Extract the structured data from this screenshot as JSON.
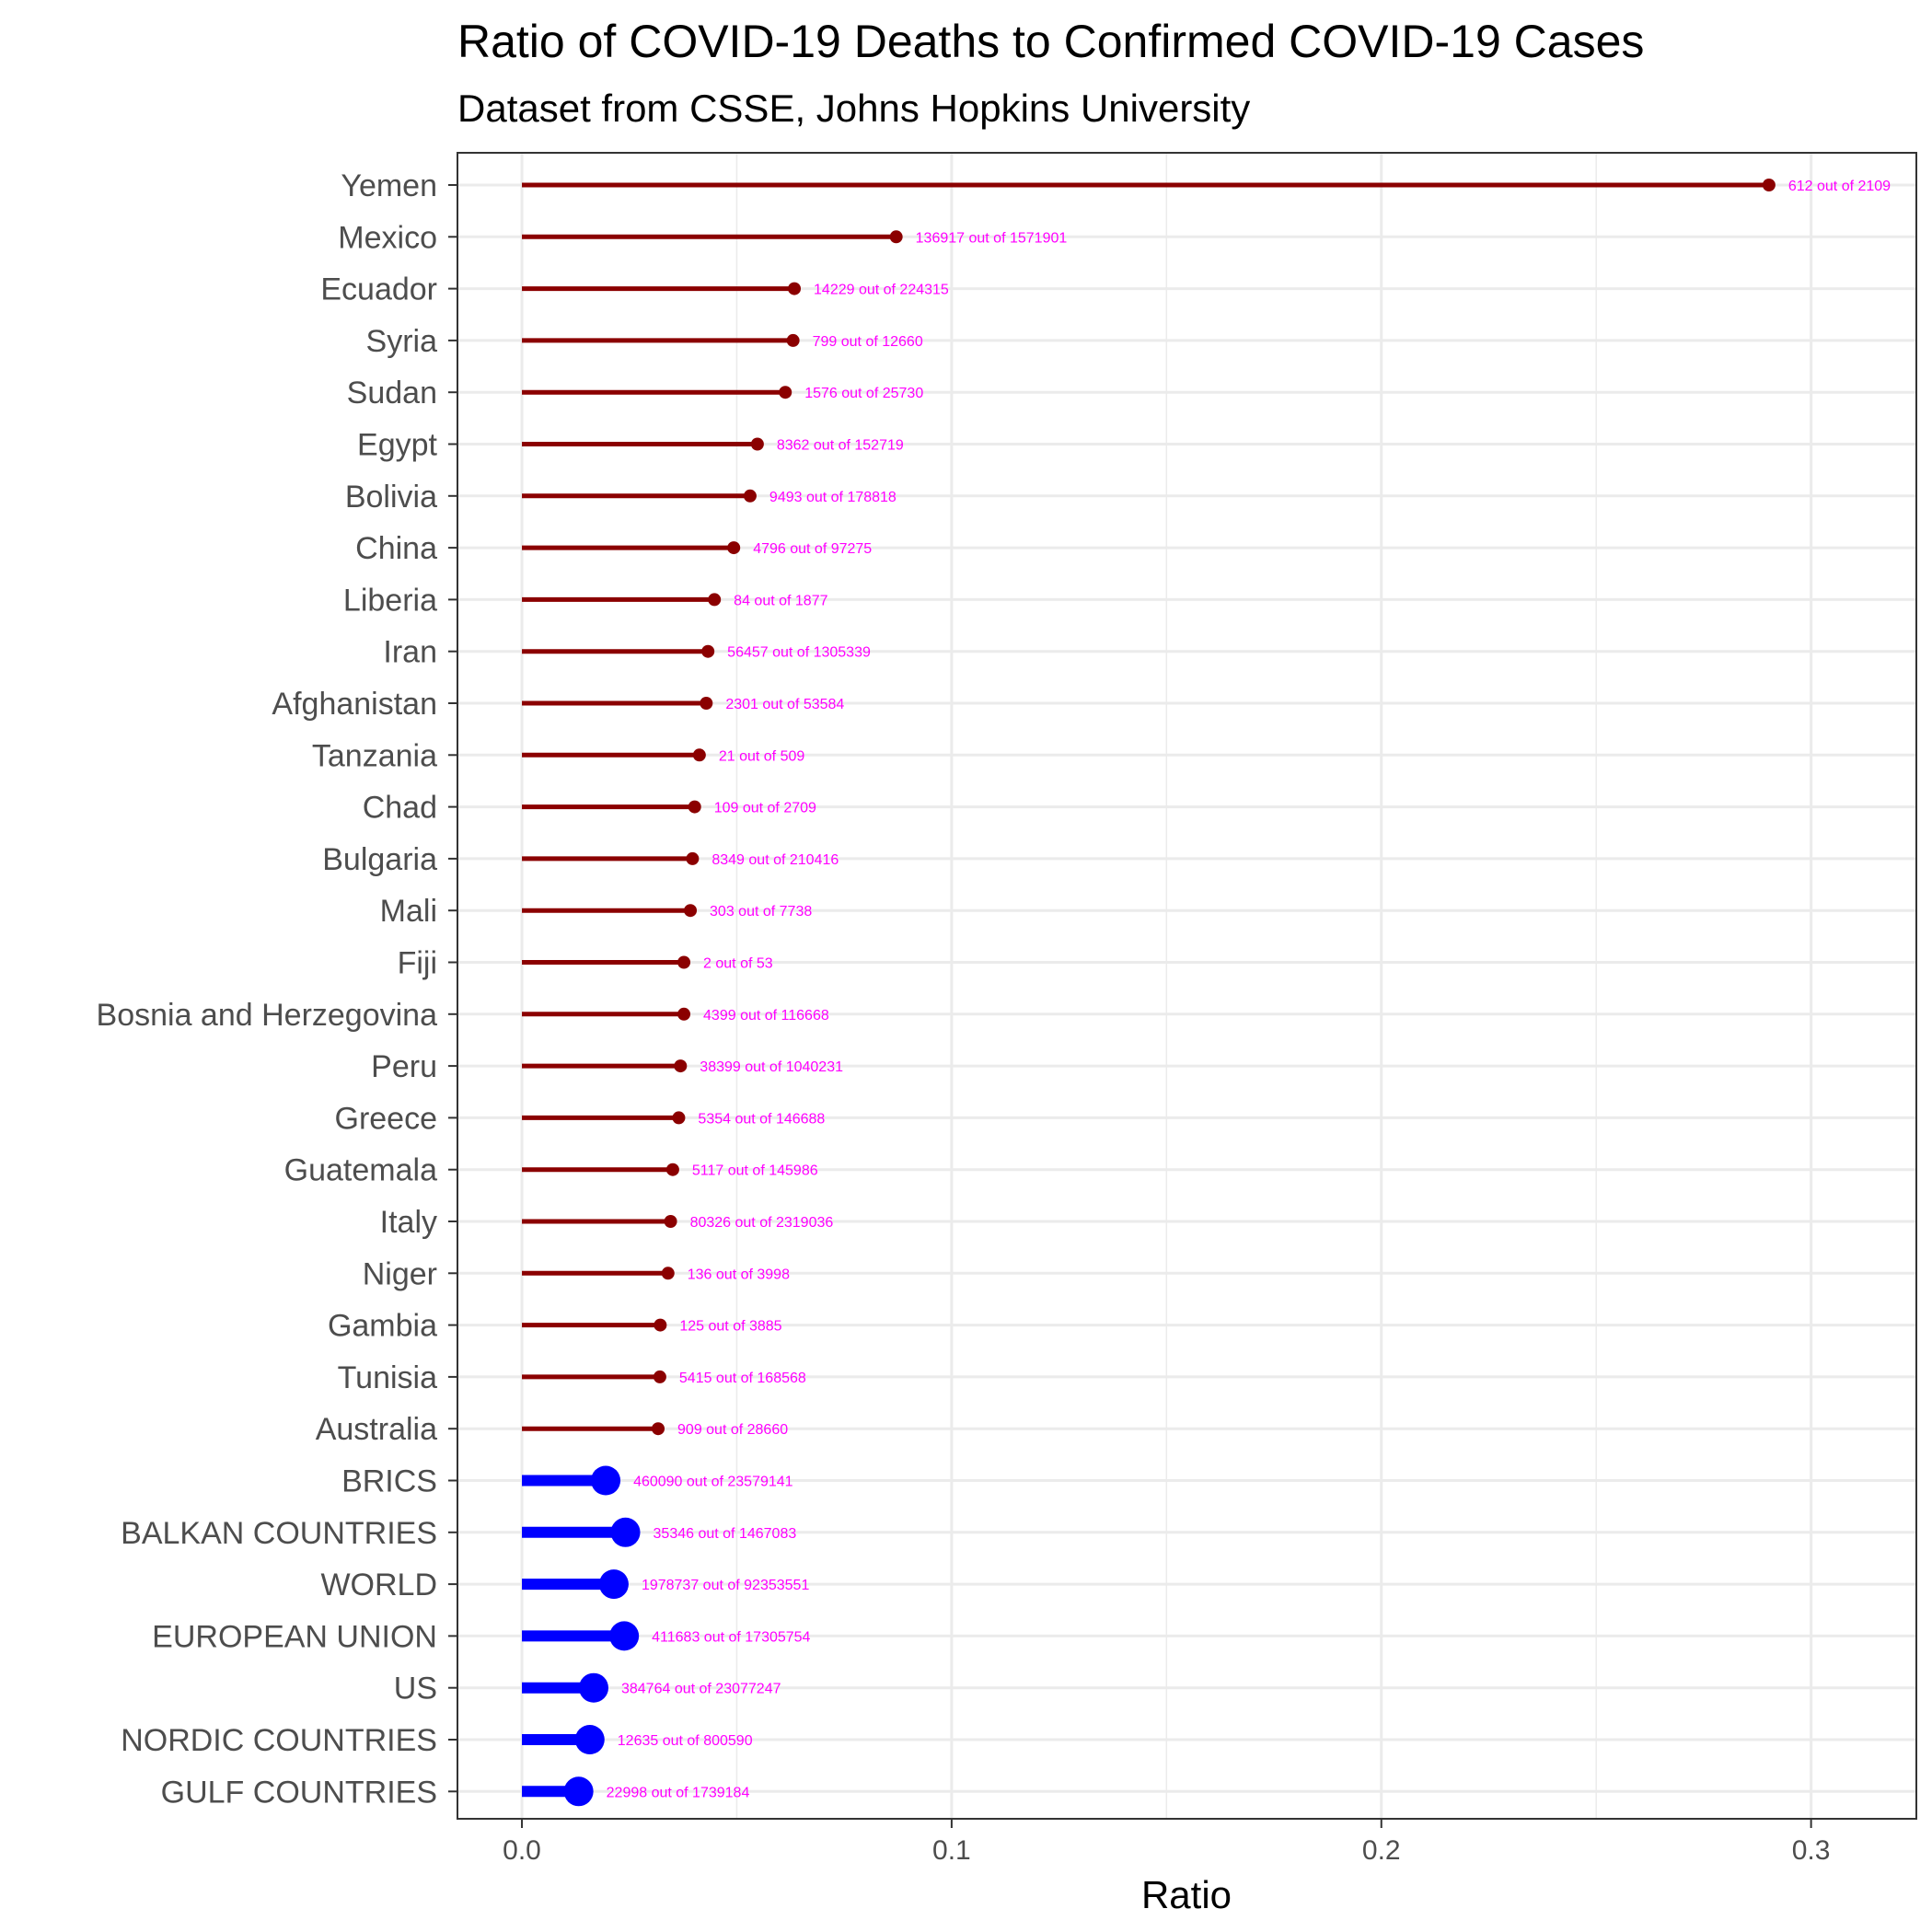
{
  "chart_data": {
    "type": "lollipop",
    "title": "Ratio of COVID-19 Deaths to Confirmed COVID-19 Cases",
    "subtitle": "Dataset from CSSE, Johns Hopkins University",
    "xlabel": "Ratio",
    "ylabel": "",
    "xlim": [
      -0.015,
      0.3245
    ],
    "xticks": [
      0.0,
      0.1,
      0.2,
      0.3
    ],
    "xtick_labels": [
      "0.0",
      "0.1",
      "0.2",
      "0.3"
    ],
    "grid": true,
    "colors": {
      "country": "#8b0000",
      "aggregate": "#0000ff",
      "data_label": "#ff00ff",
      "grid": "#ebebeb",
      "axis": "#333333"
    },
    "points": [
      {
        "name": "Yemen",
        "value": 0.2902,
        "label": "612 out of 2109",
        "group": "country"
      },
      {
        "name": "Mexico",
        "value": 0.0871,
        "label": "136917 out of 1571901",
        "group": "country"
      },
      {
        "name": "Ecuador",
        "value": 0.0634,
        "label": "14229 out of 224315",
        "group": "country"
      },
      {
        "name": "Syria",
        "value": 0.0631,
        "label": "799 out of 12660",
        "group": "country"
      },
      {
        "name": "Sudan",
        "value": 0.0613,
        "label": "1576 out of 25730",
        "group": "country"
      },
      {
        "name": "Egypt",
        "value": 0.0548,
        "label": "8362 out of 152719",
        "group": "country"
      },
      {
        "name": "Bolivia",
        "value": 0.0531,
        "label": "9493 out of 178818",
        "group": "country"
      },
      {
        "name": "China",
        "value": 0.0493,
        "label": "4796 out of 97275",
        "group": "country"
      },
      {
        "name": "Liberia",
        "value": 0.0448,
        "label": "84 out of 1877",
        "group": "country"
      },
      {
        "name": "Iran",
        "value": 0.0433,
        "label": "56457 out of 1305339",
        "group": "country"
      },
      {
        "name": "Afghanistan",
        "value": 0.0429,
        "label": "2301 out of 53584",
        "group": "country"
      },
      {
        "name": "Tanzania",
        "value": 0.0413,
        "label": "21 out of 509",
        "group": "country"
      },
      {
        "name": "Chad",
        "value": 0.0402,
        "label": "109 out of 2709",
        "group": "country"
      },
      {
        "name": "Bulgaria",
        "value": 0.0397,
        "label": "8349 out of 210416",
        "group": "country"
      },
      {
        "name": "Mali",
        "value": 0.0392,
        "label": "303 out of 7738",
        "group": "country"
      },
      {
        "name": "Fiji",
        "value": 0.0377,
        "label": "2 out of 53",
        "group": "country"
      },
      {
        "name": "Bosnia and Herzegovina",
        "value": 0.0377,
        "label": "4399 out of 116668",
        "group": "country"
      },
      {
        "name": "Peru",
        "value": 0.0369,
        "label": "38399 out of 1040231",
        "group": "country"
      },
      {
        "name": "Greece",
        "value": 0.0365,
        "label": "5354 out of 146688",
        "group": "country"
      },
      {
        "name": "Guatemala",
        "value": 0.0351,
        "label": "5117 out of 145986",
        "group": "country"
      },
      {
        "name": "Italy",
        "value": 0.0346,
        "label": "80326 out of 2319036",
        "group": "country"
      },
      {
        "name": "Niger",
        "value": 0.034,
        "label": "136 out of 3998",
        "group": "country"
      },
      {
        "name": "Gambia",
        "value": 0.0322,
        "label": "125 out of 3885",
        "group": "country"
      },
      {
        "name": "Tunisia",
        "value": 0.0321,
        "label": "5415 out of 168568",
        "group": "country"
      },
      {
        "name": "Australia",
        "value": 0.0317,
        "label": "909 out of 28660",
        "group": "country"
      },
      {
        "name": "BRICS",
        "value": 0.0195,
        "label": "460090 out of 23579141",
        "group": "aggregate"
      },
      {
        "name": "BALKAN COUNTRIES",
        "value": 0.0241,
        "label": "35346 out of 1467083",
        "group": "aggregate"
      },
      {
        "name": "WORLD",
        "value": 0.0214,
        "label": "1978737 out of 92353551",
        "group": "aggregate"
      },
      {
        "name": "EUROPEAN UNION",
        "value": 0.0238,
        "label": "411683 out of 17305754",
        "group": "aggregate"
      },
      {
        "name": "US",
        "value": 0.0167,
        "label": "384764 out of 23077247",
        "group": "aggregate"
      },
      {
        "name": "NORDIC COUNTRIES",
        "value": 0.0158,
        "label": "12635 out of 800590",
        "group": "aggregate"
      },
      {
        "name": "GULF COUNTRIES",
        "value": 0.0132,
        "label": "22998 out of 1739184",
        "group": "aggregate"
      }
    ]
  }
}
